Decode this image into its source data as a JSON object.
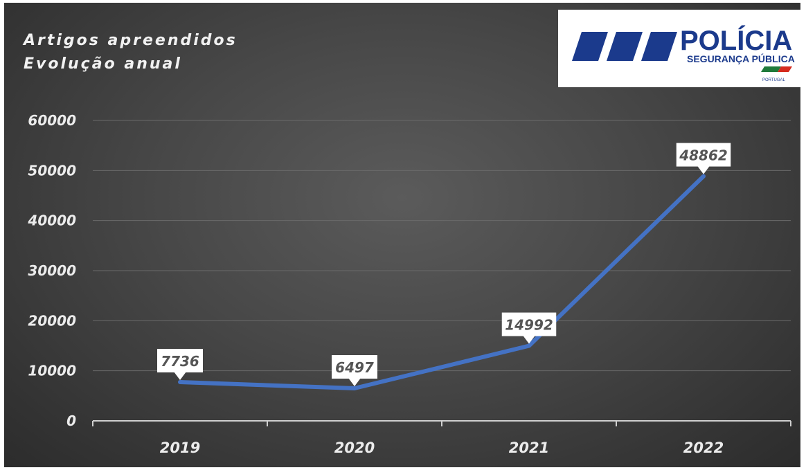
{
  "logo": {
    "name": "POLÍCIA",
    "subtitle": "SEGURANÇA PÚBLICA",
    "country": "PORTUGAL",
    "colors": {
      "blue": "#1b3a8c",
      "green": "#1f7a3a",
      "red": "#d52b1e"
    }
  },
  "chart_data": {
    "type": "line",
    "title": "Artigos apreendidos",
    "subtitle": "Evolução anual",
    "categories": [
      "2019",
      "2020",
      "2021",
      "2022"
    ],
    "values": [
      7736,
      6497,
      14992,
      48862
    ],
    "data_labels": [
      "7736",
      "6497",
      "14992",
      "48862"
    ],
    "y_ticks": [
      "0",
      "10000",
      "20000",
      "30000",
      "40000",
      "50000",
      "60000"
    ],
    "ylim": [
      0,
      60000
    ],
    "grid": true,
    "legend": "none",
    "line_color": "#4472c4",
    "background": "#474747"
  }
}
